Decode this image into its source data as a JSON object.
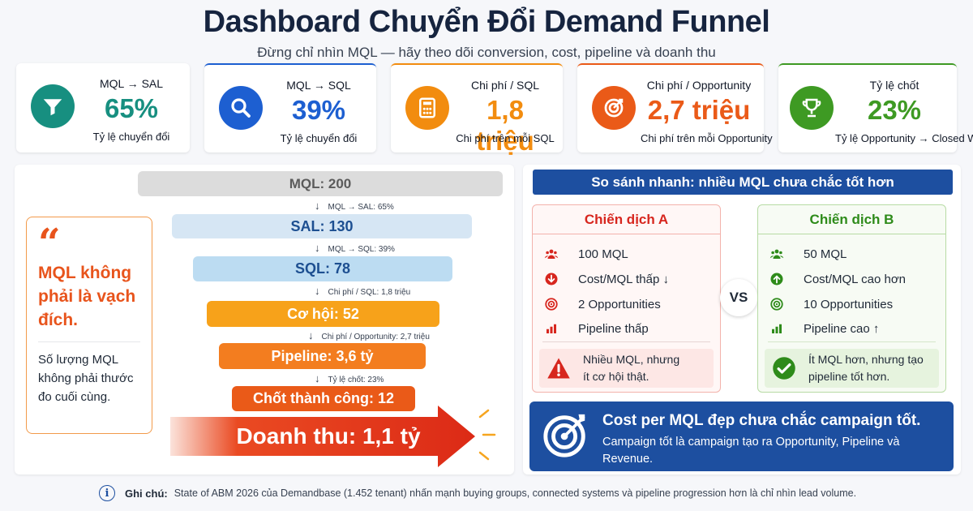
{
  "header": {
    "title": "Dashboard Chuyển Đổi Demand Funnel",
    "subtitle": "Đừng chỉ nhìn MQL — hãy theo dõi conversion, cost, pipeline và doanh thu"
  },
  "kpis": [
    {
      "label": "MQL → SAL",
      "value": "65%",
      "desc": "Tỷ lệ chuyển đổi",
      "color": "#178f80",
      "icon": "filter-icon"
    },
    {
      "label": "MQL → SQL",
      "value": "39%",
      "desc": "Tỷ lệ chuyển đổi",
      "color": "#1d5fd1",
      "icon": "search-icon"
    },
    {
      "label": "Chi phí / SQL",
      "value": "1,8 triệu",
      "desc": "Chi phí trên mỗi SQL",
      "color": "#f28c0f",
      "icon": "calculator-icon"
    },
    {
      "label": "Chi phí / Opportunity",
      "value": "2,7 triệu",
      "desc": "Chi phí trên mỗi Opportunity",
      "color": "#ea5a18",
      "icon": "target-icon"
    },
    {
      "label": "Tỷ lệ chốt",
      "value": "23%",
      "desc": "Tỷ lệ Opportunity → Closed Won",
      "color": "#3e9a23",
      "icon": "trophy-icon"
    }
  ],
  "quote": {
    "mark": "“",
    "headline": "MQL không phải là vạch đích.",
    "body": "Số lượng MQL không phải thước đo cuối cùng."
  },
  "funnel": {
    "stages": [
      {
        "label": "MQL: 200"
      },
      {
        "label": "SAL: 130"
      },
      {
        "label": "SQL: 78"
      },
      {
        "label": "Cơ hội: 52"
      },
      {
        "label": "Pipeline: 3,6 tỷ"
      },
      {
        "label": "Chốt thành công: 12"
      },
      {
        "label": "Doanh thu: 1,1 tỷ"
      }
    ],
    "steps": [
      {
        "arrow": "↓",
        "text": "MQL → SAL: 65%"
      },
      {
        "arrow": "↓",
        "text": "MQL → SQL: 39%"
      },
      {
        "arrow": "↓",
        "text": "Chi phí / SQL: 1,8 triệu"
      },
      {
        "arrow": "↓",
        "text": "Chi phí / Opportunity: 2,7 triệu"
      },
      {
        "arrow": "↓",
        "text": "Tỷ lệ chốt: 23%"
      }
    ]
  },
  "comparison": {
    "title": "So sánh nhanh: nhiều MQL chưa chắc tốt hơn",
    "vs": "VS",
    "campaign_a": {
      "title": "Chiến dịch A",
      "rows": [
        "100 MQL",
        "Cost/MQL thấp ↓",
        "2 Opportunities",
        "Pipeline thấp"
      ],
      "note": "Nhiều MQL, nhưng ít cơ hội thật."
    },
    "campaign_b": {
      "title": "Chiến dịch B",
      "rows": [
        "50 MQL",
        "Cost/MQL cao hơn",
        "10 Opportunities",
        "Pipeline cao ↑"
      ],
      "note": "Ít MQL hơn, nhưng tạo pipeline tốt hơn."
    }
  },
  "takeaway": {
    "headline": "Cost per MQL đẹp chưa chắc campaign tốt.",
    "body": "Campaign tốt là campaign tạo ra Opportunity, Pipeline và Revenue."
  },
  "footer": {
    "label": "Ghi chú:",
    "text": "State of ABM 2026 của Demandbase (1.452 tenant) nhấn mạnh buying groups, connected systems và pipeline progression hơn là chỉ nhìn lead volume."
  }
}
